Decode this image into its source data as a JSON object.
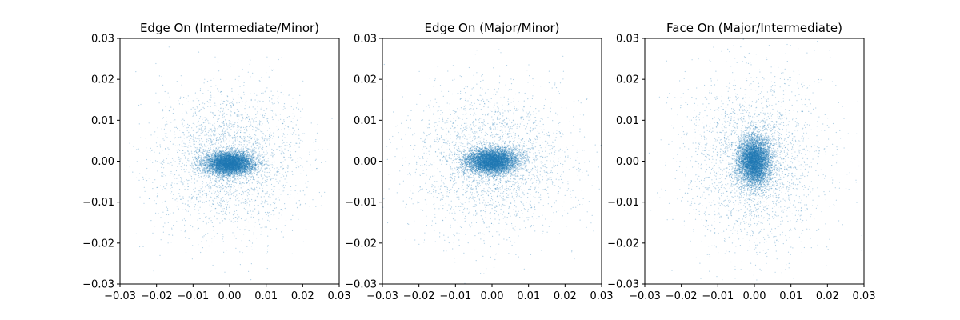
{
  "chart_data": [
    {
      "type": "scatter",
      "title": "Edge On (Intermediate/Minor)",
      "xlabel": "",
      "ylabel": "",
      "xlim": [
        -0.03,
        0.03
      ],
      "ylim": [
        -0.03,
        0.03
      ],
      "grid": false,
      "point_color": "#1f77b4",
      "xticks": [
        "−0.03",
        "−0.02",
        "−0.01",
        "0.00",
        "0.01",
        "0.02",
        "0.03"
      ],
      "yticks": [
        "−0.03",
        "−0.02",
        "−0.01",
        "0.00",
        "0.01",
        "0.02",
        "0.03"
      ],
      "distribution": {
        "x_core_spread": 0.0033,
        "y_core_spread": 0.0014,
        "x_halo_spread": 0.01,
        "y_halo_spread": 0.009,
        "core_center": [
          0.0,
          -0.0005
        ]
      }
    },
    {
      "type": "scatter",
      "title": "Edge On (Major/Minor)",
      "xlabel": "",
      "ylabel": "",
      "xlim": [
        -0.03,
        0.03
      ],
      "ylim": [
        -0.03,
        0.03
      ],
      "grid": false,
      "point_color": "#1f77b4",
      "xticks": [
        "−0.03",
        "−0.02",
        "−0.01",
        "0.00",
        "0.01",
        "0.02",
        "0.03"
      ],
      "yticks": [
        "−0.03",
        "−0.02",
        "−0.01",
        "0.00",
        "0.01",
        "0.02",
        "0.03"
      ],
      "distribution": {
        "x_core_spread": 0.0035,
        "y_core_spread": 0.0015,
        "x_halo_spread": 0.011,
        "y_halo_spread": 0.009,
        "core_center": [
          0.0,
          0.0
        ]
      }
    },
    {
      "type": "scatter",
      "title": "Face On (Major/Intermediate)",
      "xlabel": "",
      "ylabel": "",
      "xlim": [
        -0.03,
        0.03
      ],
      "ylim": [
        -0.03,
        0.03
      ],
      "grid": false,
      "point_color": "#1f77b4",
      "xticks": [
        "−0.03",
        "−0.02",
        "−0.01",
        "0.00",
        "0.01",
        "0.02",
        "0.03"
      ],
      "yticks": [
        "−0.03",
        "−0.02",
        "−0.01",
        "0.00",
        "0.01",
        "0.02",
        "0.03"
      ],
      "distribution": {
        "x_core_spread": 0.0022,
        "y_core_spread": 0.003,
        "x_halo_spread": 0.01,
        "y_halo_spread": 0.011,
        "core_center": [
          0.0,
          0.0
        ]
      }
    }
  ]
}
